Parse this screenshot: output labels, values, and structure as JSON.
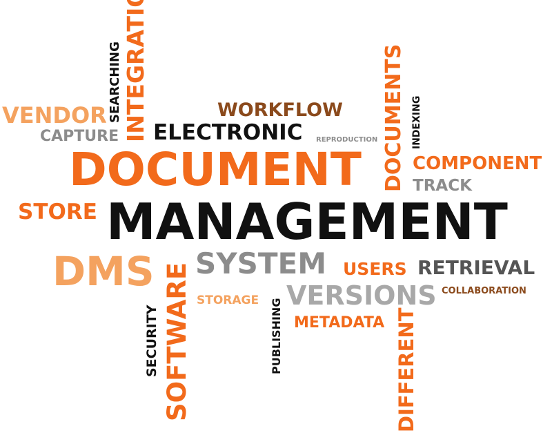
{
  "colors": {
    "orange": "#f26a1b",
    "light_orange": "#f4a25f",
    "brown": "#8b4a1c",
    "gray": "#8c8c8c",
    "black": "#111111"
  },
  "words": {
    "integration": "INTEGRATION",
    "searching": "SEARCHING",
    "vendor": "VENDOR",
    "capture": "CAPTURE",
    "workflow": "WORKFLOW",
    "electronic": "ELECTRONIC",
    "reproduction": "REPRODUCTION",
    "documents": "DOCUMENTS",
    "indexing": "INDEXING",
    "component": "COMPONENT",
    "track": "TRACK",
    "document": "DOCUMENT",
    "store": "STORE",
    "management": "MANAGEMENT",
    "dms": "DMS",
    "software": "SOFTWARE",
    "system": "SYSTEM",
    "users": "USERS",
    "retrieval": "RETRIEVAL",
    "security": "SECURITY",
    "storage": "STORAGE",
    "publishing": "PUBLISHING",
    "versions": "VERSIONS",
    "collaboration": "COLLABORATION",
    "metadata": "METADATA",
    "different": "DIFFERENT"
  }
}
